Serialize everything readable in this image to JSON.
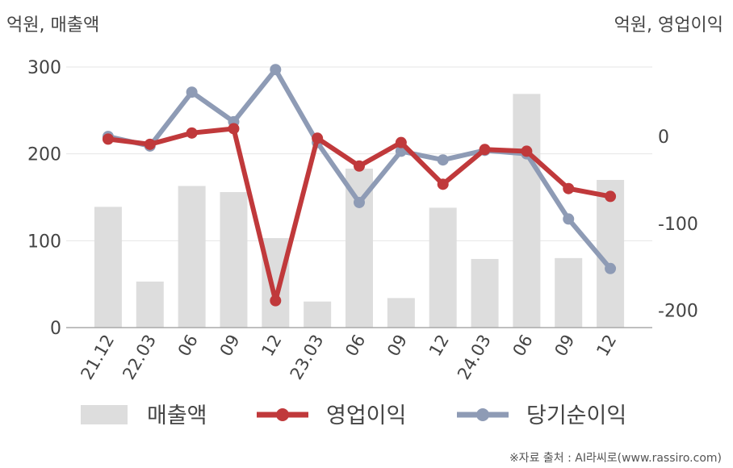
{
  "chart_data": {
    "type": "bar+line",
    "categories": [
      "21.12",
      "22.03",
      "06",
      "09",
      "12",
      "23.03",
      "06",
      "09",
      "12",
      "24.03",
      "06",
      "09",
      "12"
    ],
    "left_axis": {
      "title": "억원, 매출액",
      "ylim": [
        0,
        300
      ],
      "ticks": [
        "300",
        "200",
        "100",
        "0"
      ]
    },
    "right_axis": {
      "title": "억원, 영업이익",
      "ylim": [
        -220,
        80
      ],
      "ticks": [
        "0",
        "-100",
        "-200"
      ]
    },
    "series": [
      {
        "name": "매출액",
        "kind": "bar",
        "axis": "left",
        "color": "#dddddd",
        "values": [
          139,
          53,
          163,
          156,
          103,
          30,
          183,
          34,
          138,
          79,
          269,
          80,
          170
        ]
      },
      {
        "name": "영업이익",
        "kind": "line",
        "axis": "right",
        "color": "#c0393b",
        "values": [
          -3,
          -9,
          4,
          9,
          -189,
          -2,
          -34,
          -7,
          -55,
          -15,
          -17,
          -60,
          -69
        ]
      },
      {
        "name": "당기순이익",
        "kind": "line",
        "axis": "right",
        "color": "#8e9bb5",
        "values": [
          0,
          -11,
          51,
          17,
          77,
          -7,
          -76,
          -17,
          -27,
          -16,
          -20,
          -95,
          -152
        ]
      }
    ],
    "grid": true,
    "legend_placement": "bottom"
  },
  "source_note": "※자료 출처 : AI라씨로(www.rassiro.com)"
}
